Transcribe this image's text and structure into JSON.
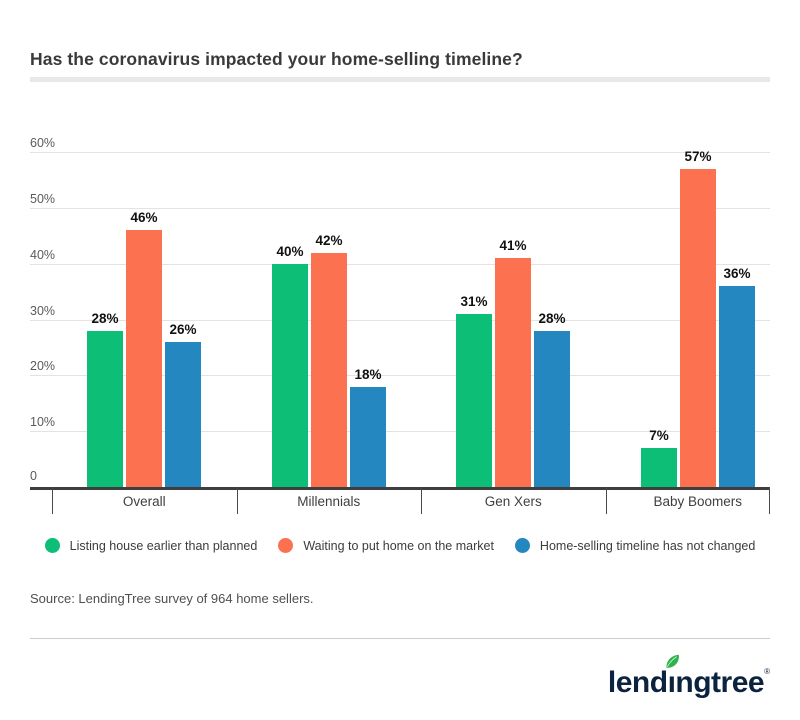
{
  "header": {
    "title": "Has the coronavirus impacted your home-selling timeline?"
  },
  "chart_data": {
    "type": "bar",
    "title": "Has the coronavirus impacted your home-selling timeline?",
    "categories": [
      "Overall",
      "Millennials",
      "Gen Xers",
      "Baby Boomers"
    ],
    "series": [
      {
        "name": "Listing house earlier than planned",
        "color": "#0dbe76",
        "values": [
          28,
          40,
          31,
          7
        ]
      },
      {
        "name": "Waiting to put home on the market",
        "color": "#fc7251",
        "values": [
          46,
          42,
          41,
          57
        ]
      },
      {
        "name": "Home-selling timeline has not changed",
        "color": "#2587c0",
        "values": [
          26,
          18,
          28,
          36
        ]
      }
    ],
    "value_labels": [
      [
        "28%",
        "40%",
        "31%",
        "7%"
      ],
      [
        "46%",
        "42%",
        "41%",
        "57%"
      ],
      [
        "26%",
        "18%",
        "28%",
        "36%"
      ]
    ],
    "value_suffix": "%",
    "y_ticks": [
      "0",
      "10%",
      "20%",
      "30%",
      "40%",
      "50%",
      "60%"
    ],
    "ylim": [
      0,
      60
    ],
    "grid": true,
    "legend_position": "bottom"
  },
  "footer": {
    "source": "Source: LendingTree survey of 964 home sellers."
  },
  "logo": {
    "text": "lendingtree",
    "part1": "lend",
    "dotless_i": "ı",
    "part2": "ngtree",
    "registered": "®"
  },
  "colors": {
    "brand_navy": "#0c2340",
    "leaf_green": "#2eb24c",
    "bar_green": "#0dbe76",
    "bar_orange": "#fc7251",
    "bar_blue": "#2587c0",
    "axis": "#3e3e3e",
    "gridline": "#e3e3e3"
  }
}
